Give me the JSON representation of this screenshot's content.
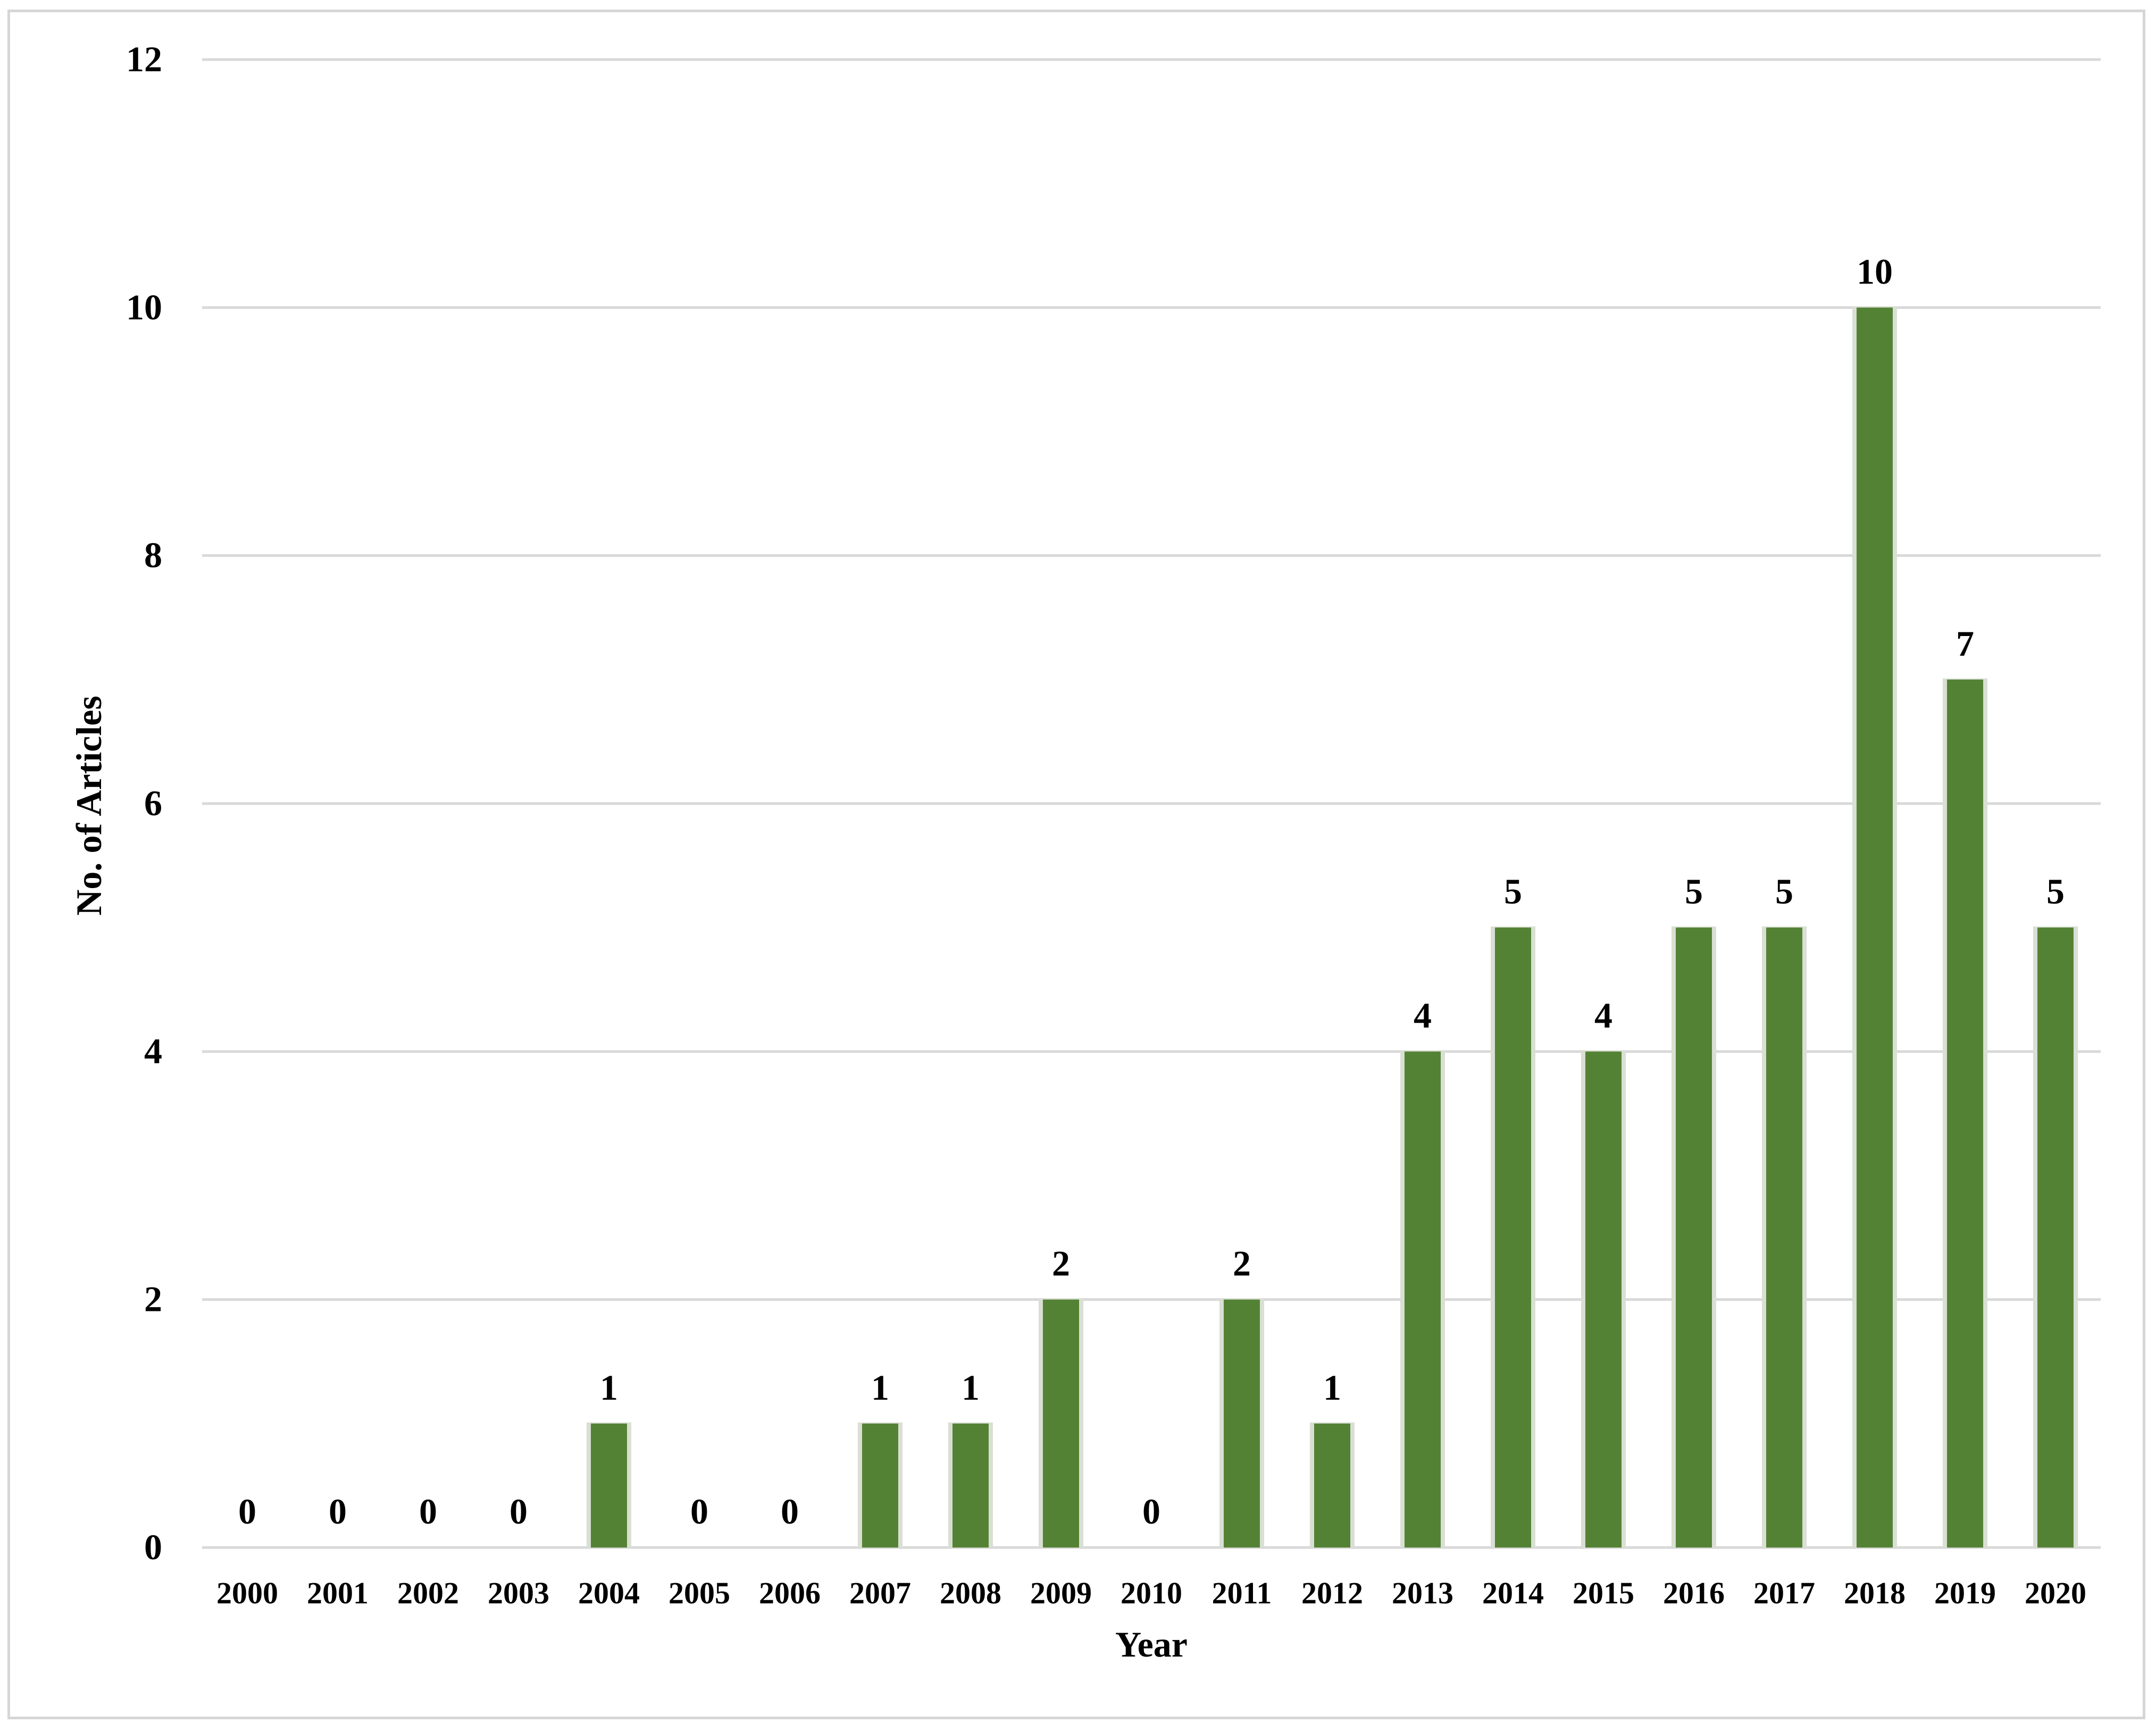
{
  "chart_data": {
    "type": "bar",
    "title": "",
    "xlabel": "Year",
    "ylabel": "No. of Articles",
    "categories": [
      "2000",
      "2001",
      "2002",
      "2003",
      "2004",
      "2005",
      "2006",
      "2007",
      "2008",
      "2009",
      "2010",
      "2011",
      "2012",
      "2013",
      "2014",
      "2015",
      "2016",
      "2017",
      "2018",
      "2019",
      "2020"
    ],
    "values": [
      0,
      0,
      0,
      0,
      1,
      0,
      0,
      1,
      1,
      2,
      0,
      2,
      1,
      4,
      5,
      4,
      5,
      5,
      10,
      7,
      5
    ],
    "ylim": [
      0,
      12
    ],
    "yticks": [
      0,
      2,
      4,
      6,
      8,
      10,
      12
    ],
    "grid": true,
    "legend": "none",
    "data_labels": true,
    "bar_color": "#548235",
    "bar_shadow_color": "#d9dfd3",
    "grid_color": "#d9d9d9"
  }
}
